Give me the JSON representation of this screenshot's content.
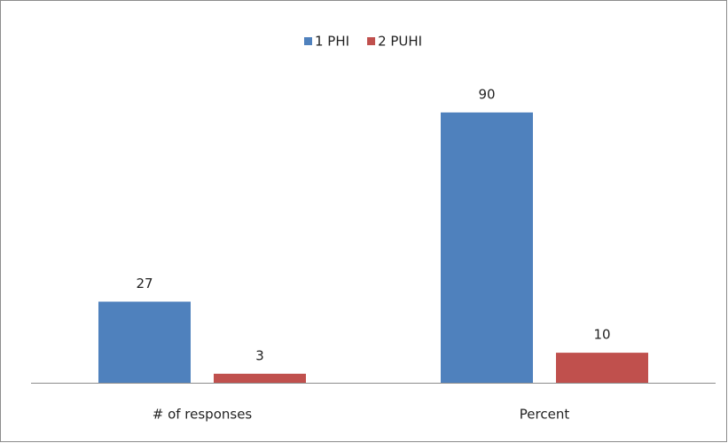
{
  "chart_data": {
    "type": "bar",
    "categories": [
      "# of responses",
      "Percent"
    ],
    "series": [
      {
        "name": "1 PHI",
        "color": "#4f81bd",
        "values": [
          27,
          90
        ]
      },
      {
        "name": "2 PUHI",
        "color": "#c0504d",
        "values": [
          3,
          10
        ]
      }
    ],
    "ylim": [
      0,
      100
    ]
  }
}
